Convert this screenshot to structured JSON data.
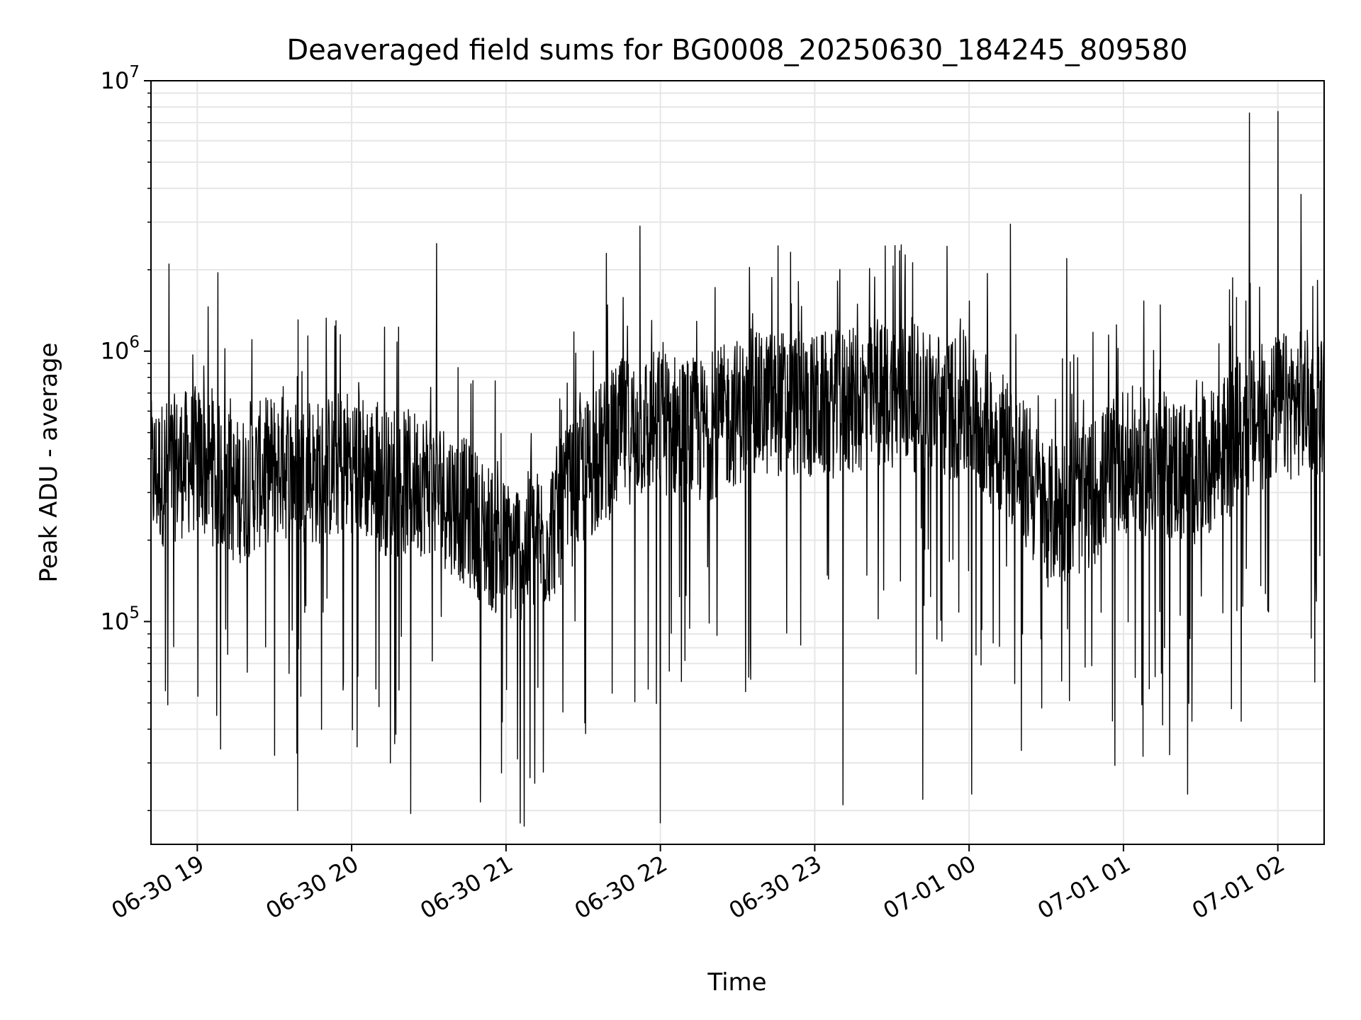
{
  "chart_data": {
    "type": "line",
    "title": "Deaveraged field sums for BG0008_20250630_184245_809580",
    "xlabel": "Time",
    "ylabel": "Peak ADU - average",
    "yscale": "log",
    "ylim": [
      15000,
      10000000
    ],
    "xlim": [
      "2025-06-30 18:42",
      "2025-07-01 02:18"
    ],
    "grid": true,
    "line_color": "#000000",
    "x_ticks": [
      "06-30 19",
      "06-30 20",
      "06-30 21",
      "06-30 22",
      "06-30 23",
      "07-01 00",
      "07-01 01",
      "07-01 02"
    ],
    "y_ticks": [
      {
        "base": "10",
        "exp": "5",
        "value": 100000
      },
      {
        "base": "10",
        "exp": "6",
        "value": 1000000
      },
      {
        "base": "10",
        "exp": "7",
        "value": 10000000
      }
    ],
    "series": [
      {
        "x": [
          "2025-06-30 18:45",
          "2025-06-30 19:00",
          "2025-06-30 19:15",
          "2025-06-30 19:30",
          "2025-06-30 19:45",
          "2025-06-30 20:00",
          "2025-06-30 20:15",
          "2025-06-30 20:30",
          "2025-06-30 20:45",
          "2025-06-30 21:00",
          "2025-06-30 21:15",
          "2025-06-30 21:30",
          "2025-06-30 21:45",
          "2025-06-30 22:00",
          "2025-06-30 22:15",
          "2025-06-30 22:30",
          "2025-06-30 22:45",
          "2025-06-30 23:00",
          "2025-06-30 23:15",
          "2025-06-30 23:30",
          "2025-06-30 23:45",
          "2025-07-01 00:00",
          "2025-07-01 00:15",
          "2025-07-01 00:30",
          "2025-07-01 00:45",
          "2025-07-01 01:00",
          "2025-07-01 01:15",
          "2025-07-01 01:30",
          "2025-07-01 01:45",
          "2025-07-01 02:00",
          "2025-07-01 02:15"
        ],
        "y": [
          350000,
          400000,
          300000,
          380000,
          350000,
          400000,
          320000,
          330000,
          250000,
          180000,
          200000,
          350000,
          500000,
          550000,
          500000,
          600000,
          650000,
          620000,
          650000,
          700000,
          650000,
          600000,
          450000,
          250000,
          280000,
          400000,
          380000,
          350000,
          500000,
          620000,
          650000
        ],
        "spikes": [
          {
            "x": "2025-06-30 18:49",
            "y": 2100000
          },
          {
            "x": "2025-06-30 19:08",
            "y": 1950000
          },
          {
            "x": "2025-06-30 19:30",
            "y": 32000
          },
          {
            "x": "2025-06-30 19:39",
            "y": 20000
          },
          {
            "x": "2025-06-30 20:15",
            "y": 30000
          },
          {
            "x": "2025-06-30 20:23",
            "y": 19500
          },
          {
            "x": "2025-06-30 20:33",
            "y": 2500000
          },
          {
            "x": "2025-06-30 21:07",
            "y": 17500
          },
          {
            "x": "2025-06-30 21:39",
            "y": 2300000
          },
          {
            "x": "2025-06-30 21:52",
            "y": 2900000
          },
          {
            "x": "2025-06-30 22:00",
            "y": 18000
          },
          {
            "x": "2025-06-30 23:11",
            "y": 21000
          },
          {
            "x": "2025-06-30 23:33",
            "y": 2350000
          },
          {
            "x": "2025-06-30 23:42",
            "y": 22000
          },
          {
            "x": "2025-07-01 00:01",
            "y": 23000
          },
          {
            "x": "2025-07-01 00:16",
            "y": 2950000
          },
          {
            "x": "2025-07-01 00:38",
            "y": 2200000
          },
          {
            "x": "2025-07-01 01:25",
            "y": 23000
          },
          {
            "x": "2025-07-01 01:49",
            "y": 7600000
          },
          {
            "x": "2025-07-01 02:00",
            "y": 7700000
          },
          {
            "x": "2025-07-01 02:09",
            "y": 3800000
          }
        ]
      }
    ]
  }
}
